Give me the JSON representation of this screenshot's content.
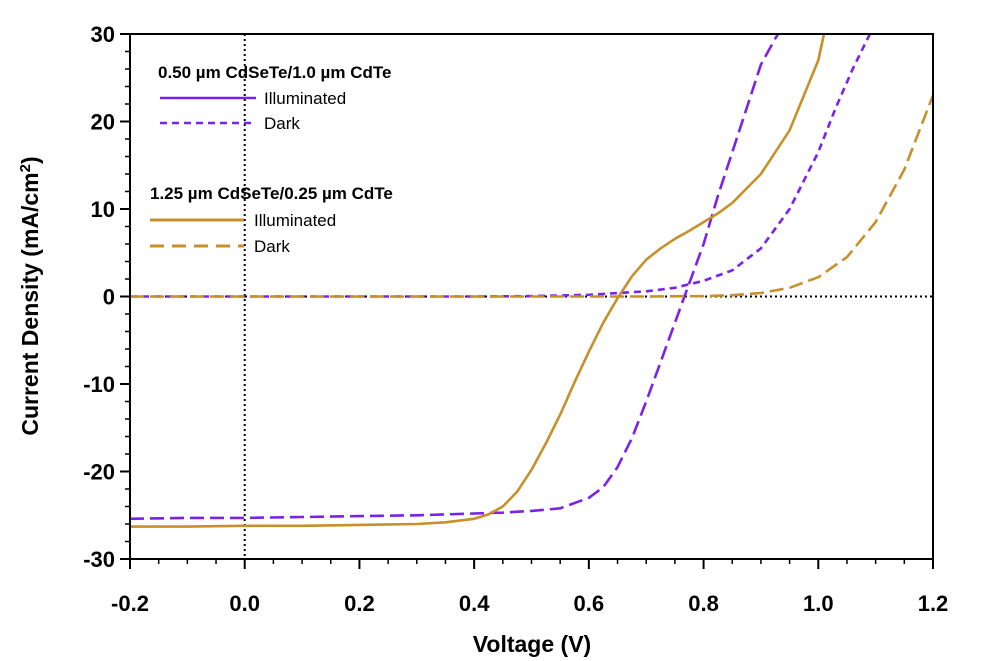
{
  "chart_data": {
    "type": "line",
    "xlabel": "Voltage (V)",
    "ylabel_main": "Current Density (mA/cm",
    "ylabel_sup": "2",
    "ylabel_close": ")",
    "xlim": [
      -0.2,
      1.2
    ],
    "ylim": [
      -30,
      30
    ],
    "xticks": [
      -0.2,
      0.0,
      0.2,
      0.4,
      0.6,
      0.8,
      1.0,
      1.2
    ],
    "xtick_labels": [
      "-0.2",
      "0.0",
      "0.2",
      "0.4",
      "0.6",
      "0.8",
      "1.0",
      "1.2"
    ],
    "yticks": [
      -30,
      -20,
      -10,
      0,
      10,
      20,
      30
    ],
    "ytick_labels": [
      "-30",
      "-20",
      "-10",
      "0",
      "10",
      "20",
      "30"
    ],
    "reference_lines": {
      "x": 0,
      "y": 0,
      "style": "dotted",
      "color": "#000000"
    },
    "legend": {
      "position": "top-left",
      "groups": [
        {
          "title": "0.50 µm CdSeTe/1.0 µm CdTe",
          "entries": [
            "Illuminated",
            "Dark"
          ]
        },
        {
          "title": "1.25 µm CdSeTe/0.25 µm CdTe",
          "entries": [
            "Illuminated",
            "Dark"
          ]
        }
      ]
    },
    "series": [
      {
        "name": "0.50 µm CdSeTe/1.0 µm CdTe Illuminated",
        "device": "0.50 µm CdSeTe/1.0 µm CdTe",
        "condition": "Illuminated",
        "color": "#7b22e8",
        "dash": "long-dash",
        "x": [
          -0.2,
          -0.1,
          0.0,
          0.1,
          0.2,
          0.3,
          0.35,
          0.4,
          0.45,
          0.5,
          0.55,
          0.6,
          0.625,
          0.65,
          0.675,
          0.7,
          0.725,
          0.75,
          0.775,
          0.8,
          0.825,
          0.85,
          0.875,
          0.9,
          0.925,
          0.93
        ],
        "y": [
          -25.4,
          -25.3,
          -25.3,
          -25.2,
          -25.1,
          -25.0,
          -24.9,
          -24.8,
          -24.7,
          -24.5,
          -24.2,
          -23.0,
          -21.8,
          -19.5,
          -16.2,
          -12.0,
          -7.5,
          -3.0,
          1.5,
          6.0,
          11.5,
          16.5,
          21.5,
          26.5,
          29.5,
          30.0
        ]
      },
      {
        "name": "0.50 µm CdSeTe/1.0 µm CdTe Dark",
        "device": "0.50 µm CdSeTe/1.0 µm CdTe",
        "condition": "Dark",
        "color": "#7b22e8",
        "dash": "dashed",
        "x": [
          -0.2,
          0.0,
          0.2,
          0.4,
          0.5,
          0.6,
          0.7,
          0.75,
          0.8,
          0.85,
          0.9,
          0.95,
          1.0,
          1.03,
          1.06,
          1.09
        ],
        "y": [
          0.0,
          0.0,
          0.0,
          0.0,
          0.05,
          0.2,
          0.6,
          1.0,
          1.8,
          3.0,
          5.5,
          10.0,
          16.5,
          21.5,
          26.0,
          30.0
        ]
      },
      {
        "name": "1.25 µm CdSeTe/0.25 µm CdTe Illuminated",
        "device": "1.25 µm CdSeTe/0.25 µm CdTe",
        "condition": "Illuminated",
        "color": "#c8902a",
        "dash": "solid",
        "x": [
          -0.2,
          -0.1,
          0.0,
          0.1,
          0.2,
          0.3,
          0.35,
          0.4,
          0.425,
          0.45,
          0.475,
          0.5,
          0.525,
          0.55,
          0.575,
          0.6,
          0.625,
          0.65,
          0.675,
          0.7,
          0.725,
          0.75,
          0.775,
          0.8,
          0.825,
          0.85,
          0.9,
          0.95,
          1.0,
          1.01
        ],
        "y": [
          -26.3,
          -26.3,
          -26.2,
          -26.2,
          -26.1,
          -26.0,
          -25.8,
          -25.4,
          -24.9,
          -24.0,
          -22.3,
          -19.8,
          -16.8,
          -13.5,
          -9.8,
          -6.3,
          -3.0,
          -0.2,
          2.3,
          4.2,
          5.5,
          6.6,
          7.5,
          8.5,
          9.5,
          10.7,
          14.0,
          19.0,
          27.0,
          30.0
        ]
      },
      {
        "name": "1.25 µm CdSeTe/0.25 µm CdTe Dark",
        "device": "1.25 µm CdSeTe/0.25 µm CdTe",
        "condition": "Dark",
        "color": "#c8902a",
        "dash": "long-dash",
        "x": [
          -0.2,
          0.0,
          0.2,
          0.4,
          0.6,
          0.7,
          0.8,
          0.85,
          0.9,
          0.95,
          1.0,
          1.05,
          1.1,
          1.15,
          1.2
        ],
        "y": [
          0.0,
          0.0,
          0.0,
          0.0,
          0.0,
          0.0,
          0.05,
          0.15,
          0.4,
          1.0,
          2.2,
          4.5,
          8.5,
          14.5,
          23.0
        ]
      }
    ]
  }
}
